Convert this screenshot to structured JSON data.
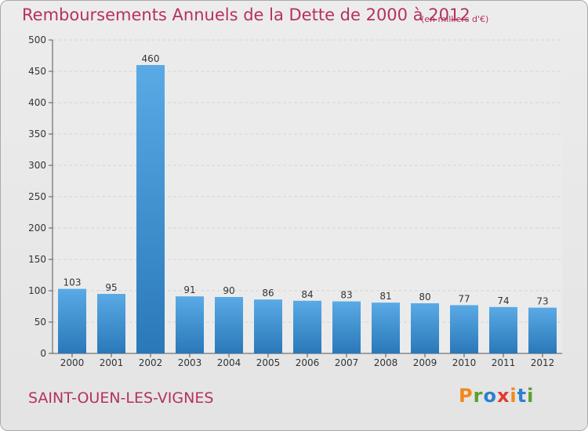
{
  "title": "Remboursements Annuels de la Dette de 2000 à 2012",
  "subtitle": "(en milliers d'€)",
  "commune": "SAINT-OUEN-LES-VIGNES",
  "logo": {
    "letters": [
      "P",
      "r",
      "o",
      "x",
      "i",
      "t",
      "i"
    ],
    "colors": [
      "#f08a1c",
      "#5aa02c",
      "#2c80d0",
      "#e13b2e",
      "#f08a1c",
      "#2c80d0",
      "#5aa02c"
    ]
  },
  "colors": {
    "bar_top": "#5aaae6",
    "bar_bottom": "#2a78b8",
    "title": "#b5325a"
  },
  "chart_data": {
    "type": "bar",
    "categories": [
      "2000",
      "2001",
      "2002",
      "2003",
      "2004",
      "2005",
      "2006",
      "2007",
      "2008",
      "2009",
      "2010",
      "2011",
      "2012"
    ],
    "values": [
      103,
      95,
      460,
      91,
      90,
      86,
      84,
      83,
      81,
      80,
      77,
      74,
      73
    ],
    "title": "Remboursements Annuels de la Dette de 2000 à 2012",
    "xlabel": "",
    "ylabel": "",
    "ylim": [
      0,
      500
    ],
    "yticks": [
      "0",
      "50",
      "100",
      "150",
      "200",
      "250",
      "300",
      "350",
      "400",
      "450",
      "500"
    ],
    "grid": true
  }
}
